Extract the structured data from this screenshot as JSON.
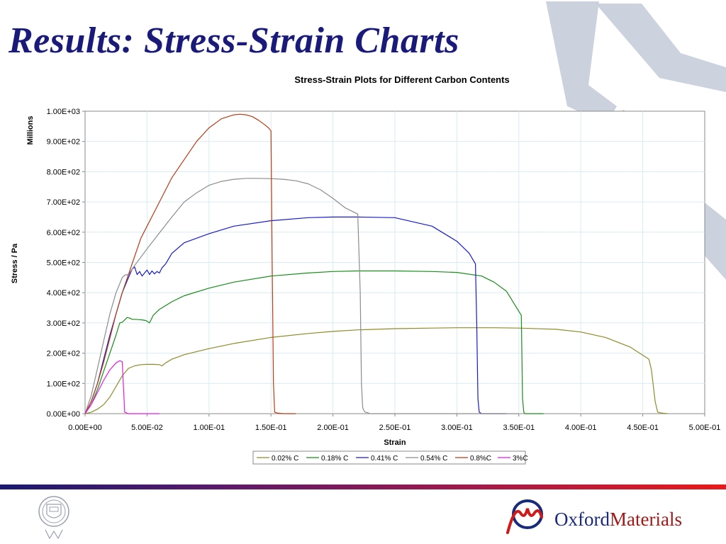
{
  "slide": {
    "title": "Results: Stress-Strain Charts",
    "logo_word1": "Oxford",
    "logo_word2": "Materials"
  },
  "colors": {
    "title": "#1a1a7a",
    "band_start": "#1a1a6e",
    "band_end": "#e81a1a",
    "watermark": "#c4cad9"
  },
  "chart_data": {
    "type": "line",
    "title": "Stress-Strain Plots for Different Carbon Contents",
    "xlabel": "Strain",
    "ylabel": "Stress / Pa",
    "y_multiplier_label": "Millions",
    "xlim": [
      0,
      0.5
    ],
    "ylim": [
      0,
      1000
    ],
    "x_ticks": [
      0,
      0.05,
      0.1,
      0.15,
      0.2,
      0.25,
      0.3,
      0.35,
      0.4,
      0.45,
      0.5
    ],
    "x_tick_labels": [
      "0.00E+00",
      "5.00E-02",
      "1.00E-01",
      "1.50E-01",
      "2.00E-01",
      "2.50E-01",
      "3.00E-01",
      "3.50E-01",
      "4.00E-01",
      "4.50E-01",
      "5.00E-01"
    ],
    "y_ticks": [
      0,
      100,
      200,
      300,
      400,
      500,
      600,
      700,
      800,
      900,
      1000
    ],
    "y_tick_labels": [
      "0.00E+00",
      "1.00E+02",
      "2.00E+02",
      "3.00E+02",
      "4.00E+02",
      "5.00E+02",
      "6.00E+02",
      "7.00E+02",
      "8.00E+02",
      "9.00E+02",
      "1.00E+03"
    ],
    "grid": true,
    "legend_position": "bottom",
    "series": [
      {
        "name": "0.02% C",
        "color": "#8c8c28",
        "x": [
          0,
          0.005,
          0.01,
          0.015,
          0.02,
          0.025,
          0.03,
          0.035,
          0.04,
          0.045,
          0.05,
          0.055,
          0.06,
          0.062,
          0.065,
          0.07,
          0.08,
          0.1,
          0.12,
          0.15,
          0.18,
          0.2,
          0.22,
          0.25,
          0.28,
          0.3,
          0.33,
          0.35,
          0.38,
          0.4,
          0.42,
          0.44,
          0.455,
          0.457,
          0.46,
          0.462,
          0.465,
          0.47
        ],
        "y": [
          0,
          5,
          15,
          30,
          55,
          90,
          125,
          150,
          158,
          162,
          163,
          163,
          162,
          158,
          168,
          180,
          195,
          215,
          232,
          252,
          265,
          272,
          277,
          281,
          283,
          284,
          284,
          283,
          279,
          270,
          252,
          220,
          180,
          145,
          40,
          5,
          2,
          0
        ]
      },
      {
        "name": "0.18% C",
        "color": "#1a8c1a",
        "x": [
          0,
          0.005,
          0.01,
          0.015,
          0.02,
          0.025,
          0.028,
          0.03,
          0.032,
          0.034,
          0.036,
          0.038,
          0.04,
          0.043,
          0.046,
          0.049,
          0.052,
          0.055,
          0.06,
          0.07,
          0.08,
          0.1,
          0.12,
          0.15,
          0.18,
          0.2,
          0.22,
          0.25,
          0.28,
          0.3,
          0.32,
          0.33,
          0.34,
          0.352,
          0.353,
          0.354,
          0.355,
          0.36,
          0.37
        ],
        "y": [
          0,
          30,
          80,
          140,
          200,
          260,
          300,
          302,
          310,
          318,
          316,
          312,
          312,
          311,
          310,
          308,
          300,
          325,
          345,
          370,
          390,
          415,
          435,
          455,
          465,
          470,
          472,
          472,
          470,
          467,
          455,
          435,
          405,
          325,
          50,
          5,
          0,
          0,
          0
        ]
      },
      {
        "name": "0.41% C",
        "color": "#1a1acc",
        "x": [
          0,
          0.005,
          0.01,
          0.015,
          0.02,
          0.025,
          0.03,
          0.035,
          0.038,
          0.04,
          0.042,
          0.044,
          0.046,
          0.048,
          0.05,
          0.052,
          0.054,
          0.056,
          0.058,
          0.06,
          0.062,
          0.065,
          0.07,
          0.08,
          0.1,
          0.12,
          0.15,
          0.18,
          0.2,
          0.22,
          0.25,
          0.28,
          0.3,
          0.31,
          0.315,
          0.316,
          0.317,
          0.318,
          0.32,
          0.34
        ],
        "y": [
          0,
          40,
          100,
          180,
          260,
          330,
          400,
          450,
          478,
          485,
          460,
          470,
          455,
          465,
          475,
          460,
          472,
          462,
          470,
          465,
          482,
          495,
          530,
          565,
          595,
          620,
          638,
          648,
          650,
          650,
          648,
          620,
          570,
          530,
          495,
          300,
          50,
          5,
          0,
          0
        ]
      },
      {
        "name": "0.54% C",
        "color": "#8c8c8c",
        "x": [
          0,
          0.005,
          0.01,
          0.015,
          0.02,
          0.025,
          0.03,
          0.032,
          0.035,
          0.04,
          0.05,
          0.06,
          0.07,
          0.08,
          0.09,
          0.1,
          0.11,
          0.12,
          0.13,
          0.14,
          0.15,
          0.16,
          0.17,
          0.18,
          0.19,
          0.2,
          0.21,
          0.22,
          0.222,
          0.223,
          0.224,
          0.225,
          0.226,
          0.228,
          0.23,
          0.25,
          0.3,
          0.35
        ],
        "y": [
          0,
          60,
          150,
          240,
          330,
          400,
          450,
          458,
          460,
          490,
          545,
          598,
          650,
          700,
          730,
          755,
          768,
          775,
          778,
          778,
          777,
          775,
          770,
          760,
          740,
          712,
          680,
          660,
          400,
          100,
          20,
          10,
          5,
          3,
          0,
          0,
          0,
          0
        ]
      },
      {
        "name": "0.8%C",
        "color": "#b83c14",
        "x": [
          0,
          0.005,
          0.01,
          0.015,
          0.02,
          0.025,
          0.03,
          0.035,
          0.04,
          0.045,
          0.05,
          0.06,
          0.07,
          0.08,
          0.09,
          0.1,
          0.11,
          0.12,
          0.125,
          0.13,
          0.135,
          0.14,
          0.145,
          0.148,
          0.15,
          0.151,
          0.152,
          0.153,
          0.155,
          0.16,
          0.17
        ],
        "y": [
          0,
          40,
          100,
          170,
          250,
          330,
          400,
          460,
          520,
          580,
          620,
          700,
          780,
          840,
          900,
          945,
          975,
          988,
          990,
          988,
          982,
          970,
          955,
          945,
          935,
          500,
          100,
          5,
          2,
          0,
          0
        ]
      },
      {
        "name": "3%C",
        "color": "#e61ae6",
        "x": [
          0,
          0.005,
          0.01,
          0.015,
          0.02,
          0.025,
          0.028,
          0.03,
          0.032,
          0.035,
          0.04,
          0.05,
          0.06
        ],
        "y": [
          0,
          30,
          70,
          110,
          145,
          168,
          175,
          172,
          5,
          0,
          0,
          0,
          0
        ]
      }
    ]
  }
}
